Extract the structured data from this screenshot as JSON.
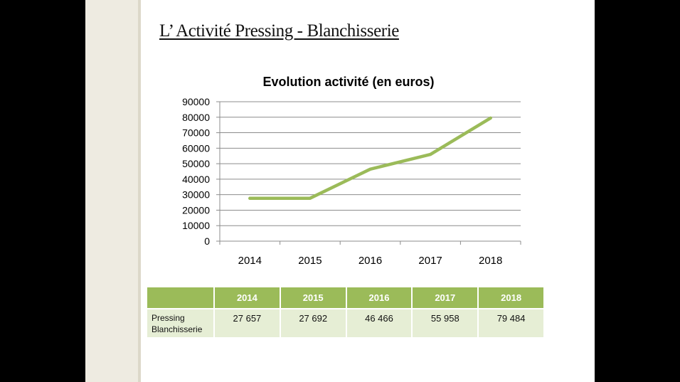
{
  "slide": {
    "title": "L’ Activité Pressing - Blanchisserie",
    "colors": {
      "accent": "#9bbb59",
      "table_body": "#e6eed5",
      "bar": "#eeebe1"
    }
  },
  "chart_data": {
    "type": "line",
    "title": "Evolution activité (en euros)",
    "categories": [
      "2014",
      "2015",
      "2016",
      "2017",
      "2018"
    ],
    "series": [
      {
        "values": [
          27657,
          27692,
          46466,
          55958,
          79484
        ],
        "color": "#9bbb59"
      }
    ],
    "ylim": [
      0,
      90000
    ],
    "yticks": [
      0,
      10000,
      20000,
      30000,
      40000,
      50000,
      60000,
      70000,
      80000,
      90000
    ],
    "grid": true,
    "legend": "none"
  },
  "table": {
    "headers": [
      "",
      "2014",
      "2015",
      "2016",
      "2017",
      "2018"
    ],
    "rows": [
      {
        "label_line1": "Pressing",
        "label_line2": "Blanchisserie",
        "values": [
          "27 657",
          "27 692",
          "46 466",
          "55 958",
          "79 484"
        ]
      }
    ]
  }
}
